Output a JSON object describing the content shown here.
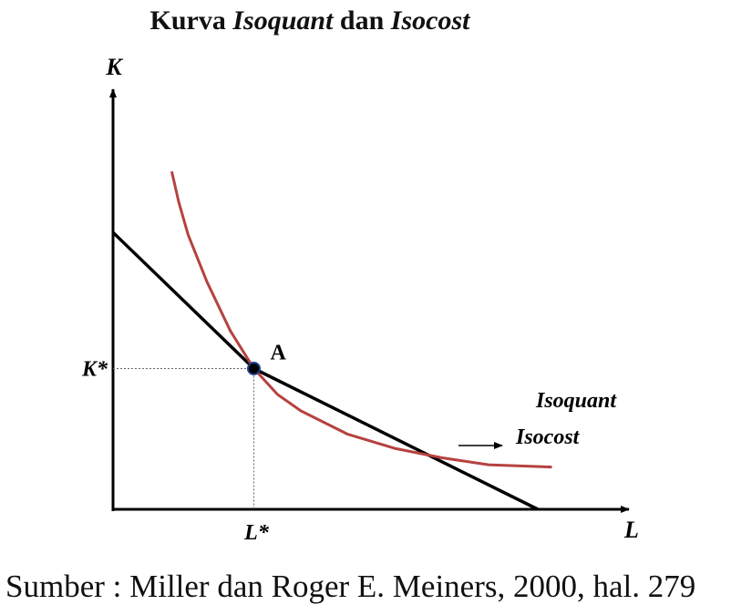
{
  "title_parts": [
    "Kurva ",
    "Isoquant",
    " dan ",
    "Isocost"
  ],
  "source": "Sumber : Miller dan Roger E. Meiners, 2000, hal. 279",
  "chart_data": {
    "type": "line",
    "title": "Kurva Isoquant dan Isocost",
    "xlabel": "L",
    "ylabel": "K",
    "x_ticks": [
      "L*"
    ],
    "y_ticks": [
      "K*"
    ],
    "xlim": [
      0,
      10
    ],
    "ylim": [
      0,
      10
    ],
    "tangent_point": {
      "label": "A",
      "x": 3,
      "y": 3
    },
    "series": [
      {
        "name": "Isoquant",
        "color": "#b5423f",
        "x": [
          1.25,
          1.4,
          1.6,
          2,
          2.5,
          3,
          3.5,
          4,
          5,
          6,
          7,
          8,
          9.35
        ],
        "y": [
          7.2,
          6.55,
          5.85,
          4.85,
          3.8,
          3.0,
          2.45,
          2.1,
          1.6,
          1.3,
          1.1,
          0.95,
          0.9
        ]
      },
      {
        "name": "Isocost",
        "color": "#000000",
        "x": [
          0,
          3,
          9.05
        ],
        "y": [
          5.9,
          3.0,
          0
        ]
      }
    ]
  }
}
